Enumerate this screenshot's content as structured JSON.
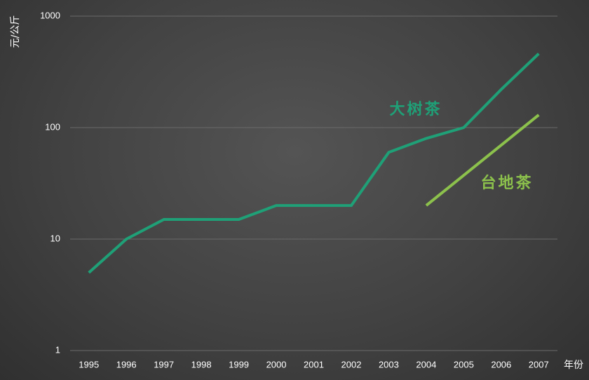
{
  "chart_data": {
    "type": "line",
    "yscale": "log",
    "ylim": [
      1,
      1000
    ],
    "yticks": [
      "1",
      "10",
      "100",
      "1000"
    ],
    "ylabel": "元/公斤",
    "xlabel": "年份",
    "categories": [
      "1995",
      "1996",
      "1997",
      "1998",
      "1999",
      "2000",
      "2001",
      "2002",
      "2003",
      "2004",
      "2005",
      "2006",
      "2007"
    ],
    "grid": true,
    "series": [
      {
        "name": "大树茶",
        "color": "#1fa077",
        "x": [
          "1995",
          "1996",
          "1997",
          "1998",
          "1999",
          "2000",
          "2001",
          "2002",
          "2003",
          "2004",
          "2005",
          "2006",
          "2007"
        ],
        "values": [
          5,
          10,
          15,
          15,
          15,
          20,
          20,
          20,
          60,
          80,
          100,
          220,
          460
        ]
      },
      {
        "name": "台地茶",
        "color": "#8cc14c",
        "x": [
          "2004",
          "2007"
        ],
        "values": [
          20,
          130
        ]
      }
    ]
  }
}
